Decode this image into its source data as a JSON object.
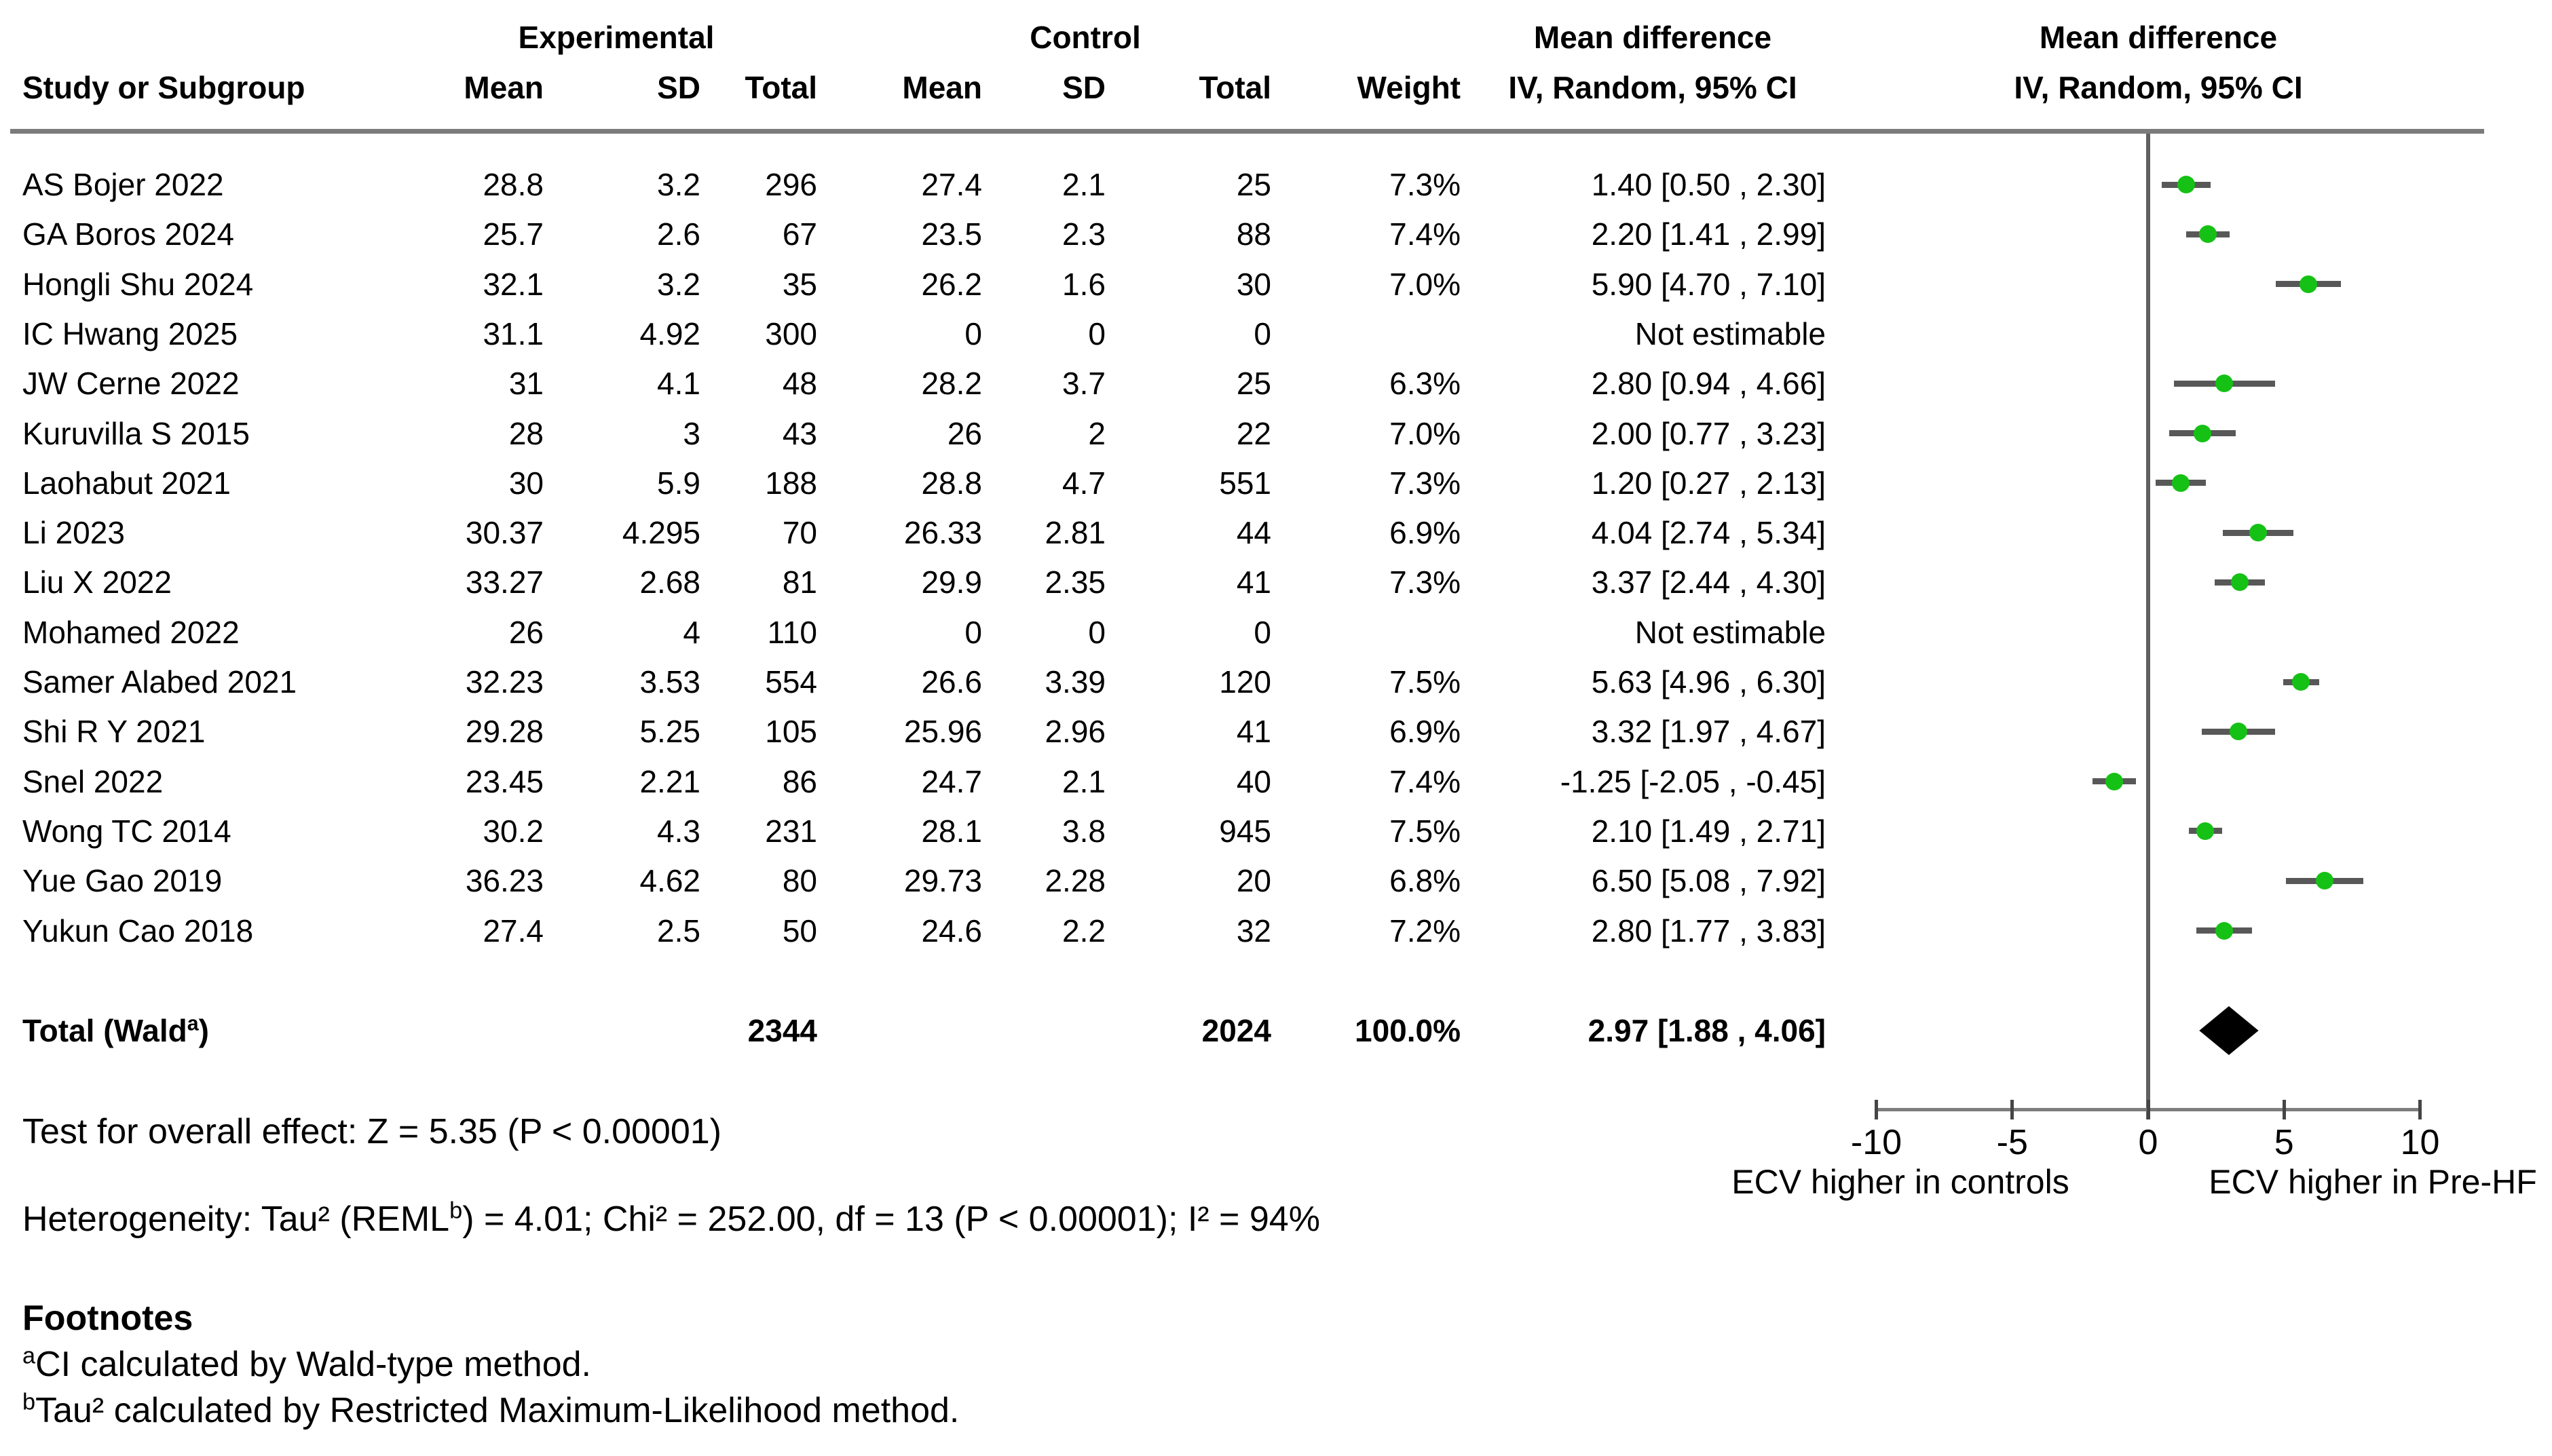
{
  "headers": {
    "experimental": "Experimental",
    "control": "Control",
    "mean_difference": "Mean difference",
    "method": "IV, Random, 95% CI",
    "study": "Study or Subgroup",
    "mean": "Mean",
    "sd": "SD",
    "total": "Total",
    "weight": "Weight"
  },
  "stats": {
    "overall_effect": "Test for overall effect: Z = 5.35 (P < 0.00001)",
    "het_pre": "Heterogeneity: Tau² (REML",
    "het_sup": "b",
    "het_post": ") = 4.01; Chi² = 252.00, df = 13 (P < 0.00001); I² = 94%"
  },
  "footnotes": {
    "header": "Footnotes",
    "a_sup": "a",
    "a_text": "CI calculated by Wald-type method.",
    "b_sup": "b",
    "b_text": "Tau² calculated by Restricted Maximum-Likelihood method."
  },
  "colors": {
    "marker_green": "#15c115",
    "ci_line": "#585858",
    "axis_gray": "#7c7c7c",
    "zero_line": "#606060",
    "rule_gray": "#7b7b7b",
    "diamond": "#000000"
  },
  "chart_data": {
    "type": "forest",
    "effect_measure": "Mean difference, IV, Random, 95% CI",
    "axis": {
      "min": -10,
      "max": 10,
      "ticks": [
        "-10",
        "-5",
        "0",
        "5",
        "10"
      ],
      "left_label": "ECV higher in controls",
      "right_label": "ECV higher in Pre-HF"
    },
    "studies": [
      {
        "name": "AS Bojer 2022",
        "e_mean": "28.8",
        "e_sd": "3.2",
        "e_total": "296",
        "c_mean": "27.4",
        "c_sd": "2.1",
        "c_total": "25",
        "weight": "7.3%",
        "ci_text": "1.40 [0.50 , 2.30]",
        "md": 1.4,
        "lo": 0.5,
        "hi": 2.3
      },
      {
        "name": "GA Boros 2024",
        "e_mean": "25.7",
        "e_sd": "2.6",
        "e_total": "67",
        "c_mean": "23.5",
        "c_sd": "2.3",
        "c_total": "88",
        "weight": "7.4%",
        "ci_text": "2.20 [1.41 , 2.99]",
        "md": 2.2,
        "lo": 1.41,
        "hi": 2.99
      },
      {
        "name": "Hongli Shu 2024",
        "e_mean": "32.1",
        "e_sd": "3.2",
        "e_total": "35",
        "c_mean": "26.2",
        "c_sd": "1.6",
        "c_total": "30",
        "weight": "7.0%",
        "ci_text": "5.90 [4.70 , 7.10]",
        "md": 5.9,
        "lo": 4.7,
        "hi": 7.1
      },
      {
        "name": "IC Hwang 2025",
        "e_mean": "31.1",
        "e_sd": "4.92",
        "e_total": "300",
        "c_mean": "0",
        "c_sd": "0",
        "c_total": "0",
        "weight": "",
        "ci_text": "Not estimable",
        "md": null,
        "lo": null,
        "hi": null
      },
      {
        "name": "JW Cerne 2022",
        "e_mean": "31",
        "e_sd": "4.1",
        "e_total": "48",
        "c_mean": "28.2",
        "c_sd": "3.7",
        "c_total": "25",
        "weight": "6.3%",
        "ci_text": "2.80 [0.94 , 4.66]",
        "md": 2.8,
        "lo": 0.94,
        "hi": 4.66
      },
      {
        "name": "Kuruvilla S 2015",
        "e_mean": "28",
        "e_sd": "3",
        "e_total": "43",
        "c_mean": "26",
        "c_sd": "2",
        "c_total": "22",
        "weight": "7.0%",
        "ci_text": "2.00 [0.77 , 3.23]",
        "md": 2.0,
        "lo": 0.77,
        "hi": 3.23
      },
      {
        "name": "Laohabut 2021",
        "e_mean": "30",
        "e_sd": "5.9",
        "e_total": "188",
        "c_mean": "28.8",
        "c_sd": "4.7",
        "c_total": "551",
        "weight": "7.3%",
        "ci_text": "1.20 [0.27 , 2.13]",
        "md": 1.2,
        "lo": 0.27,
        "hi": 2.13
      },
      {
        "name": "Li 2023",
        "e_mean": "30.37",
        "e_sd": "4.295",
        "e_total": "70",
        "c_mean": "26.33",
        "c_sd": "2.81",
        "c_total": "44",
        "weight": "6.9%",
        "ci_text": "4.04 [2.74 , 5.34]",
        "md": 4.04,
        "lo": 2.74,
        "hi": 5.34
      },
      {
        "name": "Liu X 2022",
        "e_mean": "33.27",
        "e_sd": "2.68",
        "e_total": "81",
        "c_mean": "29.9",
        "c_sd": "2.35",
        "c_total": "41",
        "weight": "7.3%",
        "ci_text": "3.37 [2.44 , 4.30]",
        "md": 3.37,
        "lo": 2.44,
        "hi": 4.3
      },
      {
        "name": "Mohamed 2022",
        "e_mean": "26",
        "e_sd": "4",
        "e_total": "110",
        "c_mean": "0",
        "c_sd": "0",
        "c_total": "0",
        "weight": "",
        "ci_text": "Not estimable",
        "md": null,
        "lo": null,
        "hi": null
      },
      {
        "name": "Samer Alabed 2021",
        "e_mean": "32.23",
        "e_sd": "3.53",
        "e_total": "554",
        "c_mean": "26.6",
        "c_sd": "3.39",
        "c_total": "120",
        "weight": "7.5%",
        "ci_text": "5.63 [4.96 , 6.30]",
        "md": 5.63,
        "lo": 4.96,
        "hi": 6.3
      },
      {
        "name": "Shi R Y 2021",
        "e_mean": "29.28",
        "e_sd": "5.25",
        "e_total": "105",
        "c_mean": "25.96",
        "c_sd": "2.96",
        "c_total": "41",
        "weight": "6.9%",
        "ci_text": "3.32 [1.97 , 4.67]",
        "md": 3.32,
        "lo": 1.97,
        "hi": 4.67
      },
      {
        "name": "Snel 2022",
        "e_mean": "23.45",
        "e_sd": "2.21",
        "e_total": "86",
        "c_mean": "24.7",
        "c_sd": "2.1",
        "c_total": "40",
        "weight": "7.4%",
        "ci_text": "-1.25 [-2.05 , -0.45]",
        "md": -1.25,
        "lo": -2.05,
        "hi": -0.45
      },
      {
        "name": "Wong TC 2014",
        "e_mean": "30.2",
        "e_sd": "4.3",
        "e_total": "231",
        "c_mean": "28.1",
        "c_sd": "3.8",
        "c_total": "945",
        "weight": "7.5%",
        "ci_text": "2.10 [1.49 , 2.71]",
        "md": 2.1,
        "lo": 1.49,
        "hi": 2.71
      },
      {
        "name": "Yue Gao 2019",
        "e_mean": "36.23",
        "e_sd": "4.62",
        "e_total": "80",
        "c_mean": "29.73",
        "c_sd": "2.28",
        "c_total": "20",
        "weight": "6.8%",
        "ci_text": "6.50 [5.08 , 7.92]",
        "md": 6.5,
        "lo": 5.08,
        "hi": 7.92
      },
      {
        "name": "Yukun Cao 2018",
        "e_mean": "27.4",
        "e_sd": "2.5",
        "e_total": "50",
        "c_mean": "24.6",
        "c_sd": "2.2",
        "c_total": "32",
        "weight": "7.2%",
        "ci_text": "2.80 [1.77 , 3.83]",
        "md": 2.8,
        "lo": 1.77,
        "hi": 3.83
      }
    ],
    "total": {
      "label_main": "Total (Wald",
      "label_sup": "a",
      "label_close": ")",
      "e_total": "2344",
      "c_total": "2024",
      "weight": "100.0%",
      "ci_text": "2.97 [1.88 , 4.06]",
      "md": 2.97,
      "lo": 1.88,
      "hi": 4.06
    }
  }
}
